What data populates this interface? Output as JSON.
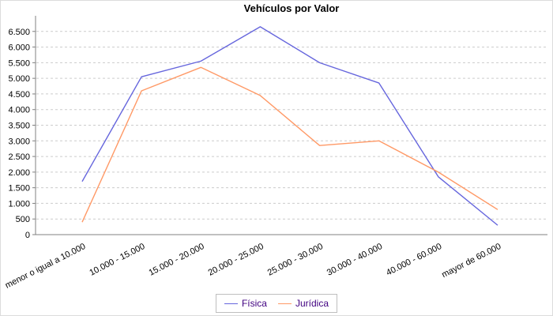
{
  "chart_data": {
    "type": "line",
    "title": "Vehículos por Valor",
    "xlabel": "",
    "ylabel": "",
    "categories": [
      "menor o igual a 10.000",
      "10.000 - 15.000",
      "15.000 - 20.000",
      "20.000 - 25.000",
      "25.000 - 30.000",
      "30.000 - 40.000",
      "40.000 - 60.000",
      "mayor de 60.000"
    ],
    "series": [
      {
        "name": "Física",
        "color": "#6666dd",
        "values": [
          1700,
          5050,
          5550,
          6650,
          5500,
          4850,
          1850,
          300
        ]
      },
      {
        "name": "Jurídica",
        "color": "#ff9966",
        "values": [
          400,
          4600,
          5350,
          4450,
          2850,
          3000,
          2000,
          800
        ]
      }
    ],
    "ylim": [
      0,
      7000
    ],
    "y_tick_step": 500,
    "y_tick_labels": [
      "0",
      "500",
      "1.000",
      "1.500",
      "2.000",
      "2.500",
      "3.000",
      "3.500",
      "4.000",
      "4.500",
      "5.000",
      "5.500",
      "6.000",
      "6.500"
    ],
    "grid": "horizontal dashed",
    "legend_position": "bottom",
    "colors": {
      "grid": "#cccccc",
      "axis": "#808080",
      "tick_text": "#000000",
      "legend_text": "#400080",
      "background": "#ffffff"
    }
  }
}
